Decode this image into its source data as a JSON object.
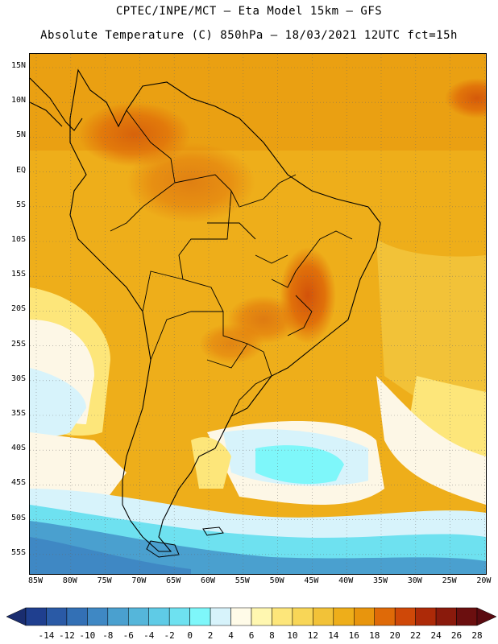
{
  "header": {
    "line1": "CPTEC/INPE/MCT –  Eta Model 15km – GFS",
    "line2": "Absolute Temperature (C) 850hPa – 18/03/2021 12UTC fct=15h"
  },
  "map": {
    "lat_labels": [
      "15N",
      "10N",
      "5N",
      "EQ",
      "5S",
      "10S",
      "15S",
      "20S",
      "25S",
      "30S",
      "35S",
      "40S",
      "45S",
      "50S",
      "55S"
    ],
    "lon_labels": [
      "85W",
      "80W",
      "75W",
      "70W",
      "65W",
      "60W",
      "55W",
      "50W",
      "45W",
      "40W",
      "35W",
      "30W",
      "25W",
      "20W"
    ],
    "gridlines": true
  },
  "colorbar": {
    "labels": [
      "-14",
      "-12",
      "-10",
      "-8",
      "-6",
      "-4",
      "-2",
      "0",
      "2",
      "4",
      "6",
      "8",
      "10",
      "12",
      "14",
      "16",
      "18",
      "20",
      "22",
      "24",
      "26",
      "28"
    ],
    "colors": [
      "#1f3f8f",
      "#2a5aa6",
      "#3370b5",
      "#3f88c4",
      "#4aa0cf",
      "#55b6da",
      "#5fcbe6",
      "#6ee1f0",
      "#7ef7fa",
      "#d7f3fb",
      "#fffbe8",
      "#fff7b0",
      "#fde67a",
      "#f8d657",
      "#f2c238",
      "#eeae1a",
      "#e8950d",
      "#df6a08",
      "#cf4808",
      "#ad2a08",
      "#8a1a0c",
      "#6b0f0f"
    ],
    "left_end": "#1a2d6f",
    "right_end": "#5a0a10"
  },
  "legend_colors": {
    "ocean_cool": "#7ff6f8",
    "ocean_mild": "#fdf7e6",
    "land_warm": "#eeae1a",
    "land_hot": "#df6a08",
    "coast": "#000000"
  }
}
